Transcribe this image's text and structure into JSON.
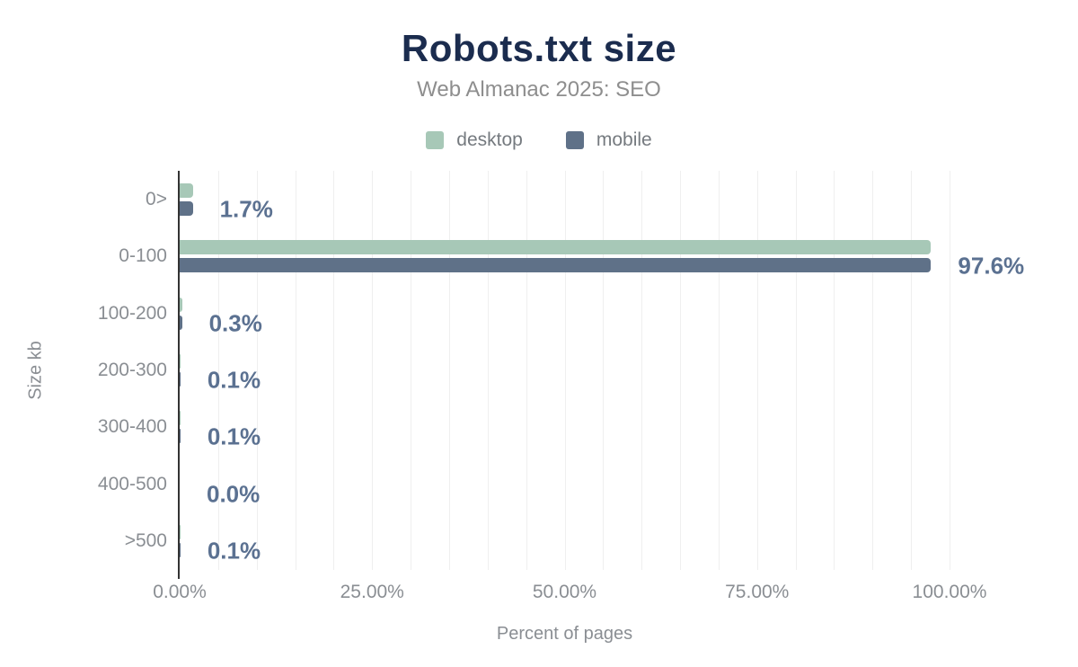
{
  "chart_data": {
    "type": "bar",
    "orientation": "horizontal",
    "title": "Robots.txt size",
    "subtitle": "Web Almanac 2025: SEO",
    "xlabel": "Percent of pages",
    "ylabel": "Size kb",
    "categories": [
      "0>",
      "0-100",
      "100-200",
      "200-300",
      "300-400",
      "400-500",
      ">500"
    ],
    "series": [
      {
        "name": "desktop",
        "color": "#a7c8b7",
        "values": [
          1.7,
          97.5,
          0.3,
          0.1,
          0.1,
          0.0,
          0.1
        ]
      },
      {
        "name": "mobile",
        "color": "#5f7188",
        "values": [
          1.7,
          97.6,
          0.3,
          0.1,
          0.1,
          0.0,
          0.1
        ]
      }
    ],
    "bar_labels": [
      "1.7%",
      "97.6%",
      "0.3%",
      "0.1%",
      "0.1%",
      "0.0%",
      "0.1%"
    ],
    "x_ticks": [
      "0.00%",
      "25.00%",
      "50.00%",
      "75.00%",
      "100.00%"
    ],
    "xlim": [
      0,
      100
    ],
    "grid_step_percent": 5,
    "grid": true,
    "legend_position": "top",
    "colors": {
      "title": "#1b2c4e",
      "subtitle": "#8e8e8e",
      "axis_text": "#8a8e93",
      "value_label": "#5b7191",
      "axis_line": "#333333",
      "gridline": "#efefef",
      "background": "#ffffff"
    }
  }
}
